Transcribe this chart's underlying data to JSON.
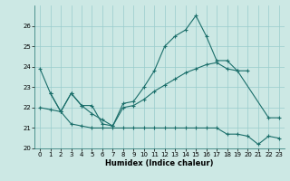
{
  "xlabel": "Humidex (Indice chaleur)",
  "bg_color": "#cce8e4",
  "grid_color": "#99cccc",
  "line_color": "#1a6e6a",
  "xlim": [
    -0.5,
    23.5
  ],
  "ylim": [
    20,
    27
  ],
  "yticks": [
    20,
    21,
    22,
    23,
    24,
    25,
    26
  ],
  "xticks": [
    0,
    1,
    2,
    3,
    4,
    5,
    6,
    7,
    8,
    9,
    10,
    11,
    12,
    13,
    14,
    15,
    16,
    17,
    18,
    19,
    20,
    21,
    22,
    23
  ],
  "line1_x": [
    0,
    1,
    2,
    3,
    4,
    5,
    6,
    7,
    8,
    9,
    10,
    11,
    12,
    13,
    14,
    15,
    16,
    17,
    18,
    19,
    22,
    23
  ],
  "line1_y": [
    23.9,
    22.7,
    21.8,
    22.7,
    22.1,
    22.1,
    21.2,
    21.1,
    22.2,
    22.3,
    23.0,
    23.8,
    25.0,
    25.5,
    25.8,
    26.5,
    25.5,
    24.3,
    24.3,
    23.8,
    21.5,
    21.5
  ],
  "line2_x": [
    1,
    2,
    3,
    4,
    5,
    6,
    7,
    8,
    9,
    10,
    11,
    12,
    13,
    14,
    15,
    16,
    17,
    18,
    19,
    20
  ],
  "line2_y": [
    22.7,
    21.8,
    22.7,
    22.1,
    21.7,
    21.4,
    21.1,
    22.0,
    22.1,
    22.4,
    22.8,
    23.1,
    23.4,
    23.7,
    23.9,
    24.1,
    24.2,
    23.9,
    23.8,
    23.8
  ],
  "line3_x": [
    0,
    1,
    2,
    3,
    4,
    5,
    6,
    7,
    8,
    9,
    10,
    11,
    12,
    13,
    14,
    15,
    16,
    17,
    18,
    19,
    20,
    21,
    22,
    23
  ],
  "line3_y": [
    22.0,
    21.9,
    21.8,
    21.2,
    21.1,
    21.0,
    21.0,
    21.0,
    21.0,
    21.0,
    21.0,
    21.0,
    21.0,
    21.0,
    21.0,
    21.0,
    21.0,
    21.0,
    20.7,
    20.7,
    20.6,
    20.2,
    20.6,
    20.5
  ]
}
